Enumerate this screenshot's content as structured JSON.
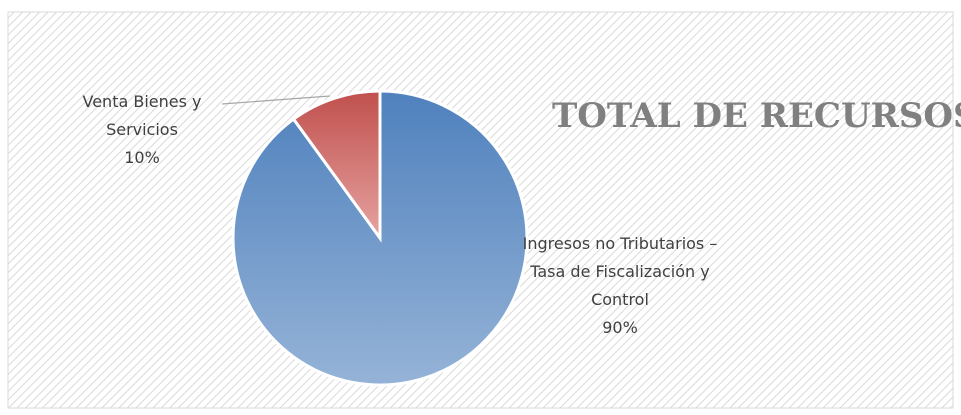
{
  "chart_data": {
    "type": "pie",
    "title": "TOTAL DE RECURSOS",
    "categories": [
      "Ingresos no Tributarios – Tasa de Fiscalización y Control",
      "Venta Bienes y Servicios"
    ],
    "values": [
      90,
      10
    ],
    "value_labels": [
      "90%",
      "10%"
    ],
    "colors": [
      [
        "#4f81bd",
        "#95b3d7"
      ],
      [
        "#c0504d",
        "#e6a3a1"
      ]
    ]
  }
}
